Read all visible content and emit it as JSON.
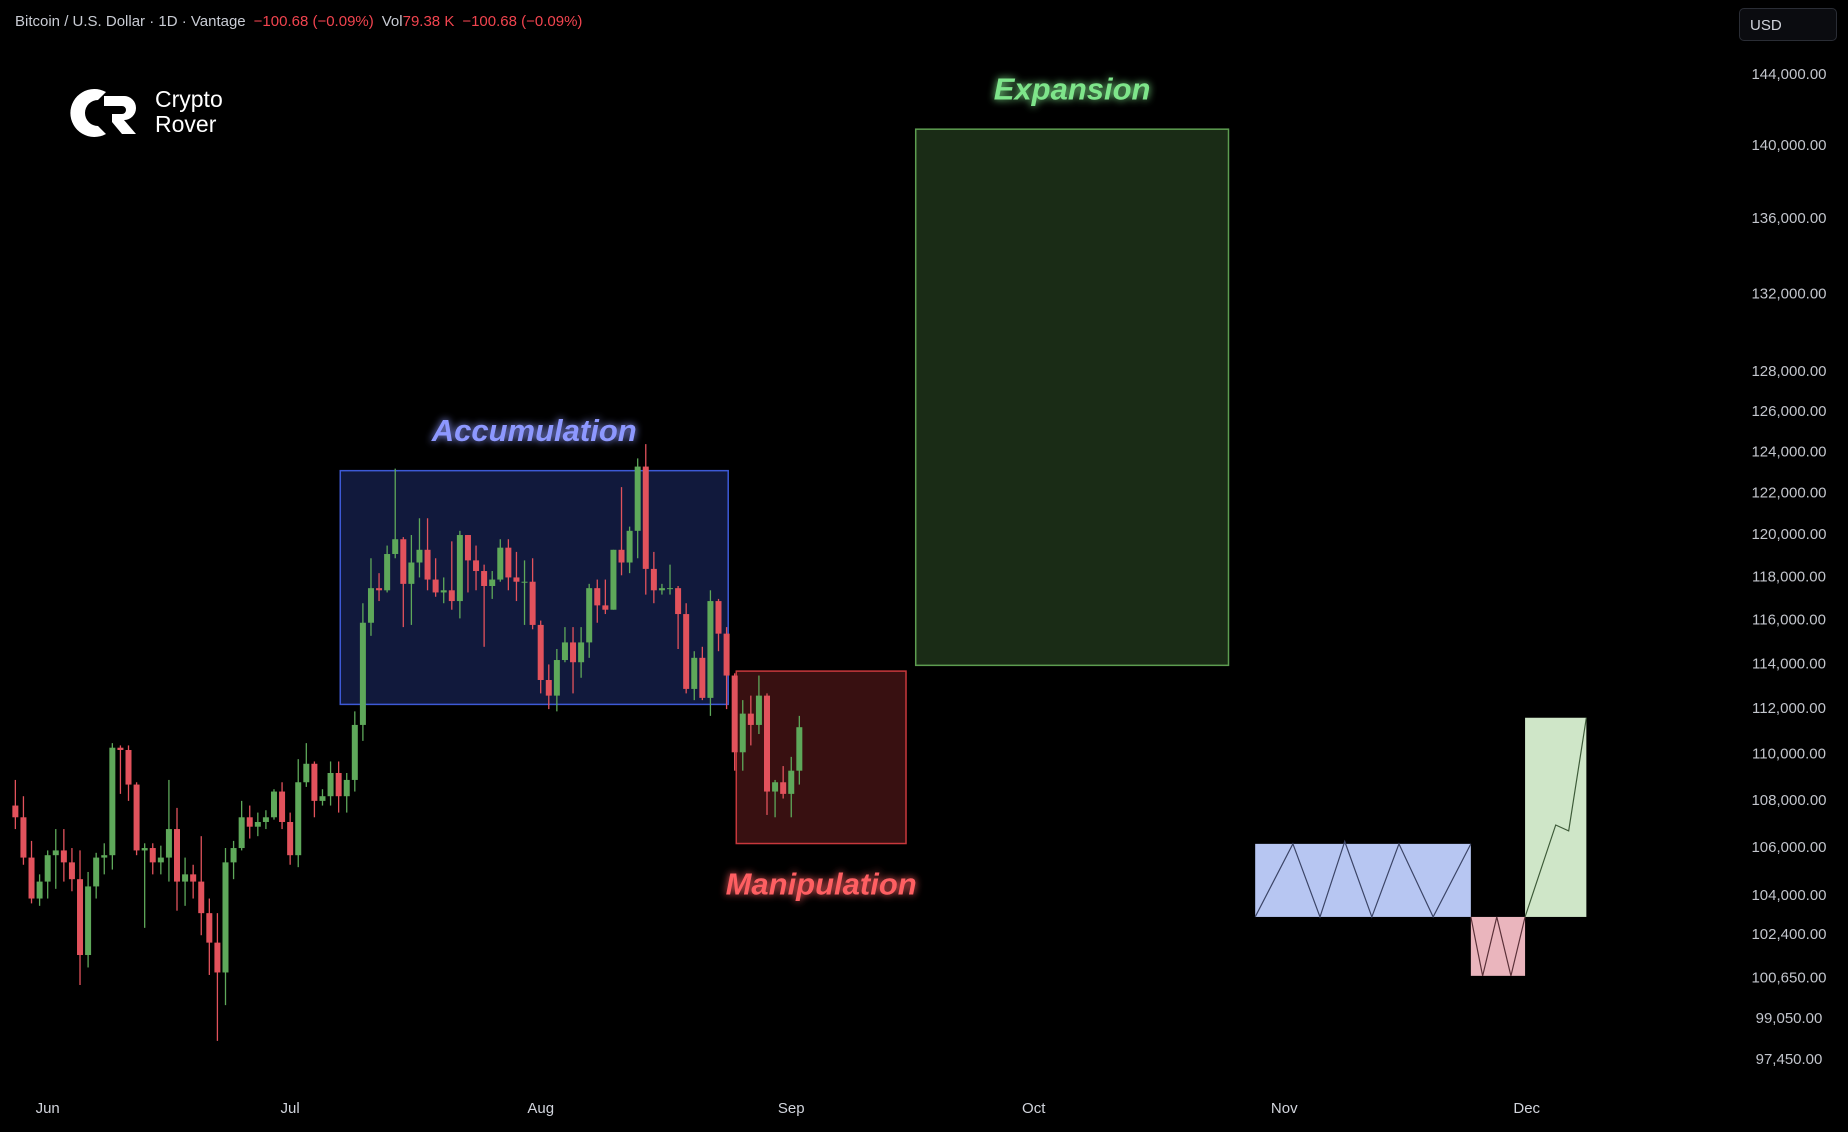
{
  "header": {
    "symbol": "Bitcoin / U.S. Dollar · 1D · Vantage",
    "change": "−100.68 (−0.09%)",
    "volume_label": "Vol",
    "volume": "79.38 K",
    "volume_change": "−100.68 (−0.09%)",
    "currency": "USD"
  },
  "logo": {
    "line1": "Crypto",
    "line2": "Rover"
  },
  "chart_data": {
    "type": "candlestick",
    "log_scale": true,
    "up_color": "#5ea85a",
    "down_color": "#e2525c",
    "open": [
      107800,
      107300,
      105600,
      103900,
      104600,
      105700,
      105900,
      105400,
      104700,
      101600,
      104400,
      105600,
      105700,
      110300,
      110200,
      108700,
      105900,
      106000,
      105400,
      105600,
      106800,
      104600,
      104900,
      104600,
      103300,
      102100,
      100900,
      105400,
      106000,
      107300,
      106900,
      107100,
      107300,
      108400,
      107100,
      105700,
      108800,
      109600,
      108000,
      108200,
      109200,
      108200,
      108900,
      111300,
      115900,
      117500,
      117400,
      119100,
      119800,
      117700,
      118700,
      119300,
      117900,
      117300,
      117400,
      116900,
      120000,
      118800,
      118300,
      117600,
      117900,
      119400,
      118000,
      117800,
      117800,
      115800,
      113300,
      112600,
      114200,
      115000,
      114100,
      115000,
      117500,
      116700,
      116500,
      119300,
      118700,
      120200,
      123300,
      118400,
      117400,
      117500,
      117500,
      116300,
      112900,
      114300,
      112500,
      116900,
      115400,
      113500,
      110100,
      111800,
      111300,
      112600,
      108400,
      108800,
      108300,
      109300
    ],
    "high": [
      108900,
      108200,
      106300,
      104900,
      105900,
      106800,
      106800,
      106000,
      105900,
      105000,
      105800,
      106200,
      110500,
      110400,
      110400,
      108800,
      106200,
      106200,
      106100,
      108900,
      107700,
      105600,
      105300,
      106500,
      103900,
      103300,
      106000,
      106300,
      108000,
      107800,
      107500,
      107600,
      108500,
      108800,
      107500,
      109800,
      110500,
      109700,
      108500,
      109700,
      109700,
      109200,
      111900,
      116800,
      118900,
      118200,
      119500,
      123200,
      119900,
      120000,
      120800,
      120800,
      118900,
      118000,
      119700,
      120200,
      120000,
      119500,
      118600,
      118300,
      119800,
      119800,
      119200,
      118800,
      118900,
      116000,
      114000,
      114700,
      115700,
      115700,
      115700,
      117700,
      117900,
      117900,
      119300,
      122300,
      120400,
      123700,
      124400,
      119200,
      117700,
      118600,
      117600,
      116800,
      114600,
      114800,
      117400,
      117000,
      115700,
      113600,
      112400,
      112600,
      113500,
      112700,
      108900,
      109500,
      109900,
      111700
    ],
    "low": [
      106800,
      105300,
      103700,
      103600,
      103900,
      104300,
      104600,
      104200,
      100400,
      101100,
      103900,
      104900,
      105100,
      108300,
      108000,
      105700,
      102700,
      104900,
      104900,
      104600,
      103400,
      103600,
      103900,
      102400,
      100800,
      98200,
      99600,
      104700,
      105900,
      106400,
      106500,
      106800,
      107200,
      106800,
      105300,
      105200,
      108600,
      107300,
      107800,
      107800,
      107500,
      107500,
      108400,
      110600,
      115300,
      116900,
      117300,
      118900,
      115700,
      115800,
      118000,
      117400,
      117100,
      116800,
      116500,
      116100,
      117300,
      117400,
      114800,
      117000,
      117800,
      117400,
      116900,
      115800,
      115600,
      112700,
      112000,
      111900,
      114100,
      112700,
      113400,
      114300,
      115900,
      116300,
      116500,
      118100,
      118200,
      118900,
      117200,
      116800,
      117200,
      117200,
      114700,
      112700,
      112400,
      112400,
      111700,
      114600,
      112000,
      109300,
      109300,
      110400,
      110900,
      107400,
      107300,
      108100,
      107300,
      108700
    ],
    "close": [
      107300,
      105600,
      103900,
      104600,
      105700,
      105900,
      105400,
      104700,
      101600,
      104400,
      105600,
      105700,
      110300,
      110200,
      108700,
      105900,
      106000,
      105400,
      105600,
      106800,
      104600,
      104900,
      104600,
      103300,
      102100,
      100900,
      105400,
      106000,
      107300,
      106900,
      107100,
      107300,
      108400,
      107100,
      105700,
      108800,
      109600,
      108000,
      108200,
      109200,
      108200,
      108900,
      111300,
      115900,
      117500,
      117400,
      119100,
      119800,
      117700,
      118700,
      119300,
      117900,
      117300,
      117400,
      116900,
      120000,
      118800,
      118300,
      117600,
      117900,
      119400,
      118000,
      117800,
      117800,
      115800,
      113300,
      112600,
      114200,
      115000,
      114100,
      115000,
      117500,
      116700,
      116500,
      119300,
      118700,
      120200,
      123300,
      118400,
      117400,
      117500,
      117500,
      116300,
      112900,
      114300,
      112500,
      116900,
      115400,
      113500,
      110100,
      111800,
      111300,
      112600,
      108400,
      108800,
      108300,
      109300,
      111200
    ],
    "xlim": [
      -1.9,
      211
    ],
    "xticks": [
      {
        "value": 4,
        "label": "Jun"
      },
      {
        "value": 34,
        "label": "Jul"
      },
      {
        "value": 65,
        "label": "Aug"
      },
      {
        "value": 96,
        "label": "Sep"
      },
      {
        "value": 126,
        "label": "Oct"
      },
      {
        "value": 157,
        "label": "Nov"
      },
      {
        "value": 187,
        "label": "Dec"
      }
    ],
    "ylim": [
      96300,
      145600
    ],
    "yticks": [
      {
        "value": 144000,
        "label": "144,000.00"
      },
      {
        "value": 140000,
        "label": "140,000.00"
      },
      {
        "value": 136000,
        "label": "136,000.00"
      },
      {
        "value": 132000,
        "label": "132,000.00"
      },
      {
        "value": 128000,
        "label": "128,000.00"
      },
      {
        "value": 126000,
        "label": "126,000.00"
      },
      {
        "value": 124000,
        "label": "124,000.00"
      },
      {
        "value": 122000,
        "label": "122,000.00"
      },
      {
        "value": 120000,
        "label": "120,000.00"
      },
      {
        "value": 118000,
        "label": "118,000.00"
      },
      {
        "value": 116000,
        "label": "116,000.00"
      },
      {
        "value": 114000,
        "label": "114,000.00"
      },
      {
        "value": 112000,
        "label": "112,000.00"
      },
      {
        "value": 110000,
        "label": "110,000.00"
      },
      {
        "value": 108000,
        "label": "108,000.00"
      },
      {
        "value": 106000,
        "label": "106,000.00"
      },
      {
        "value": 104000,
        "label": "104,000.00"
      },
      {
        "value": 102400,
        "label": "102,400.00"
      },
      {
        "value": 100650,
        "label": "100,650.00"
      },
      {
        "value": 99050,
        "label": "99,050.00"
      },
      {
        "value": 97450,
        "label": "97,450.00"
      }
    ],
    "zones": [
      {
        "label": "Accumulation",
        "color": "#3d59d6",
        "label_color": "#8d98ff",
        "x": [
          40.2,
          88.2
        ],
        "y": [
          112210,
          123100
        ]
      },
      {
        "label": "Manipulation",
        "color": "#c8383c",
        "label_color": "#ff5e62",
        "x": [
          89.2,
          110.2
        ],
        "y": [
          106190,
          113700
        ]
      },
      {
        "label": "Expansion",
        "color": "#5d9d50",
        "label_color": "#7ee58a",
        "x": [
          111.4,
          150.1
        ],
        "y": [
          113960,
          140940
        ]
      }
    ]
  }
}
